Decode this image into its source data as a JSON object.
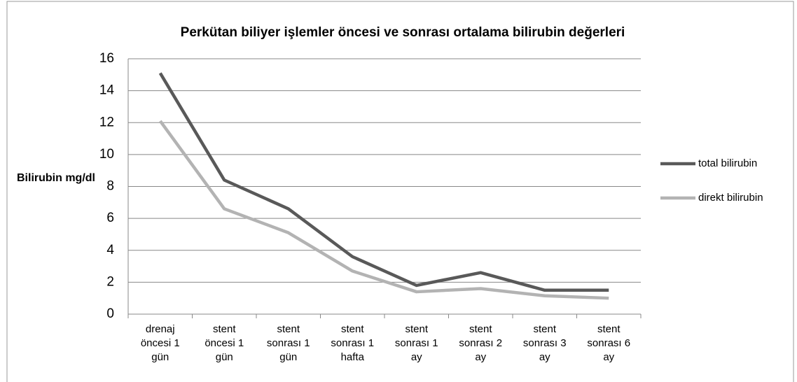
{
  "chart_data": {
    "type": "line",
    "title": "Perkütan biliyer işlemler öncesi ve sonrası ortalama bilirubin değerleri",
    "y_label": "Bilirubin mg/dl",
    "categories": [
      "drenaj öncesi 1 gün",
      "stent öncesi 1 gün",
      "stent sonrası 1 gün",
      "stent sonrası 1 hafta",
      "stent sonrası 1 ay",
      "stent sonrası 2 ay",
      "stent sonrası 3 ay",
      "stent sonrası 6 ay"
    ],
    "series": [
      {
        "name": "total bilirubin",
        "color": "#595959",
        "values": [
          15.1,
          8.4,
          6.6,
          3.6,
          1.8,
          2.6,
          1.5,
          1.5
        ]
      },
      {
        "name": "direkt bilirubin",
        "color": "#b3b3b3",
        "values": [
          12.1,
          6.6,
          5.1,
          2.7,
          1.4,
          1.6,
          1.15,
          1.0
        ]
      }
    ],
    "ylim": [
      0,
      16
    ],
    "yticks": [
      0,
      2,
      4,
      6,
      8,
      10,
      12,
      14,
      16
    ],
    "grid": true,
    "legend": "right"
  }
}
